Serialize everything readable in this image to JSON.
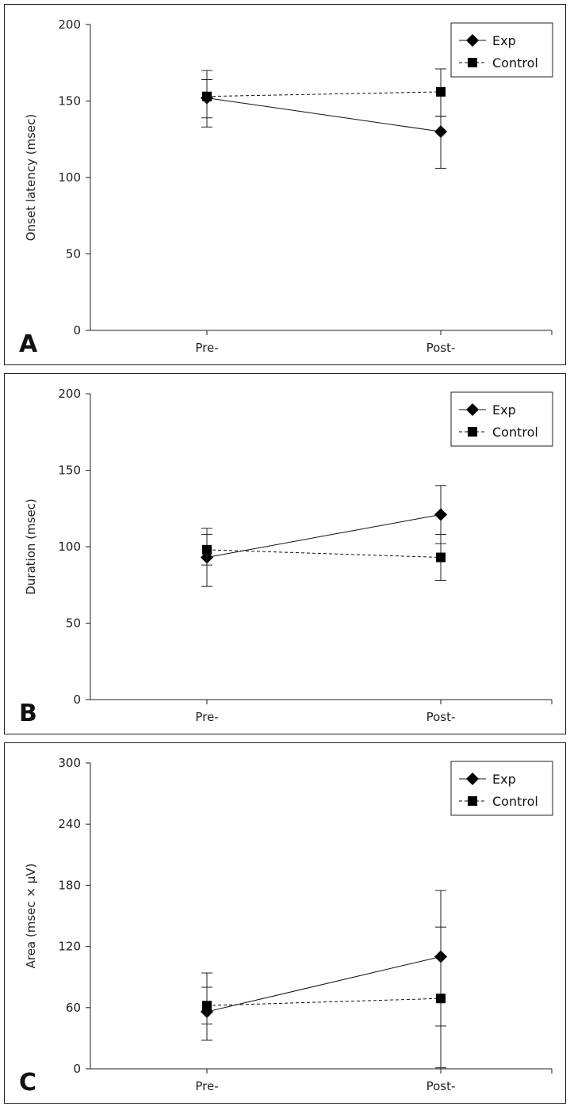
{
  "chart_data": [
    {
      "type": "line",
      "panel_label": "A",
      "ylabel": "Onset latency (msec)",
      "categories": [
        "Pre-",
        "Post-"
      ],
      "ylim": [
        0,
        200
      ],
      "yticks": [
        0,
        50,
        100,
        150,
        200
      ],
      "legend": "top-right",
      "series": [
        {
          "name": "Exp",
          "marker": "diamond",
          "dash": "solid",
          "values": [
            152,
            130
          ],
          "upper": [
            170,
            140
          ],
          "lower": [
            133,
            106
          ]
        },
        {
          "name": "Control",
          "marker": "square",
          "dash": "dashed",
          "values": [
            153,
            156
          ],
          "upper": [
            164,
            171
          ],
          "lower": [
            139,
            140
          ]
        }
      ]
    },
    {
      "type": "line",
      "panel_label": "B",
      "ylabel": "Duration (msec)",
      "categories": [
        "Pre-",
        "Post-"
      ],
      "ylim": [
        0,
        200
      ],
      "yticks": [
        0,
        50,
        100,
        150,
        200
      ],
      "legend": "top-right",
      "series": [
        {
          "name": "Exp",
          "marker": "diamond",
          "dash": "solid",
          "values": [
            93,
            121
          ],
          "upper": [
            112,
            140
          ],
          "lower": [
            74,
            102
          ]
        },
        {
          "name": "Control",
          "marker": "square",
          "dash": "dashed",
          "values": [
            98,
            93
          ],
          "upper": [
            108,
            108
          ],
          "lower": [
            88,
            78
          ]
        }
      ]
    },
    {
      "type": "line",
      "panel_label": "C",
      "ylabel": "Area (msec × μV)",
      "categories": [
        "Pre-",
        "Post-"
      ],
      "ylim": [
        0,
        300
      ],
      "yticks": [
        0,
        60,
        120,
        180,
        240,
        300
      ],
      "legend": "top-right",
      "series": [
        {
          "name": "Exp",
          "marker": "diamond",
          "dash": "solid",
          "values": [
            56,
            110
          ],
          "upper": [
            94,
            175
          ],
          "lower": [
            28,
            42
          ]
        },
        {
          "name": "Control",
          "marker": "square",
          "dash": "dashed",
          "values": [
            62,
            69
          ],
          "upper": [
            80,
            139
          ],
          "lower": [
            44,
            1
          ]
        }
      ]
    }
  ]
}
